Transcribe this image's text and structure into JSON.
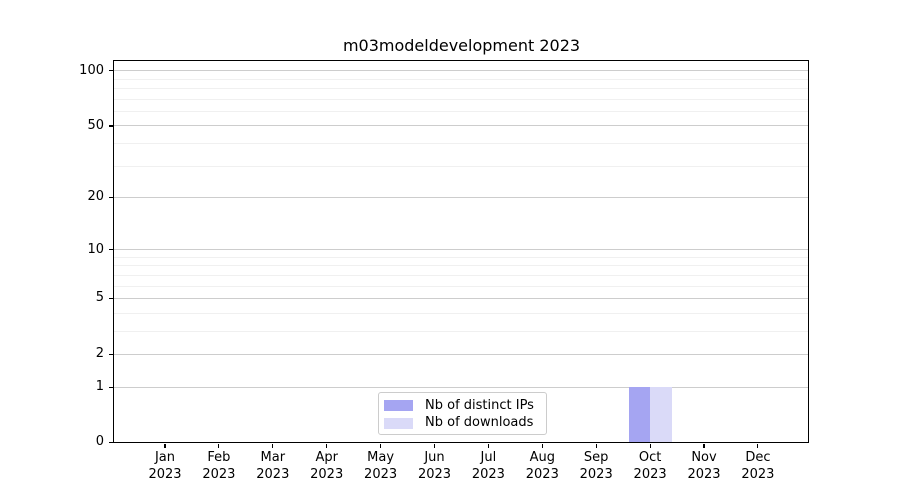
{
  "chart_data": {
    "type": "bar",
    "title": "m03modeldevelopment 2023",
    "categories": [
      "Jan",
      "Feb",
      "Mar",
      "Apr",
      "May",
      "Jun",
      "Jul",
      "Aug",
      "Sep",
      "Oct",
      "Nov",
      "Dec"
    ],
    "category_year": "2023",
    "series": [
      {
        "name": "Nb of distinct IPs",
        "color": "#a5a5f2",
        "values": [
          0,
          0,
          0,
          0,
          0,
          0,
          0,
          0,
          0,
          1,
          0,
          0
        ]
      },
      {
        "name": "Nb of downloads",
        "color": "#dadaf8",
        "values": [
          0,
          0,
          0,
          0,
          0,
          0,
          0,
          0,
          0,
          1,
          0,
          0
        ]
      }
    ],
    "yscale": "log1p",
    "ylim": [
      0,
      112
    ],
    "y_major_ticks": [
      0,
      1,
      2,
      5,
      10,
      20,
      50,
      100
    ],
    "y_minor_ticks": [
      3,
      4,
      6,
      7,
      8,
      9,
      30,
      40,
      60,
      70,
      80,
      90
    ],
    "grid": "horizontal",
    "legend_position": "bottom-center",
    "colors": {
      "major_grid": "#cdcdcd",
      "minor_grid": "#f0f0f0",
      "axis": "#000000",
      "legend_border": "#cccccc"
    }
  }
}
